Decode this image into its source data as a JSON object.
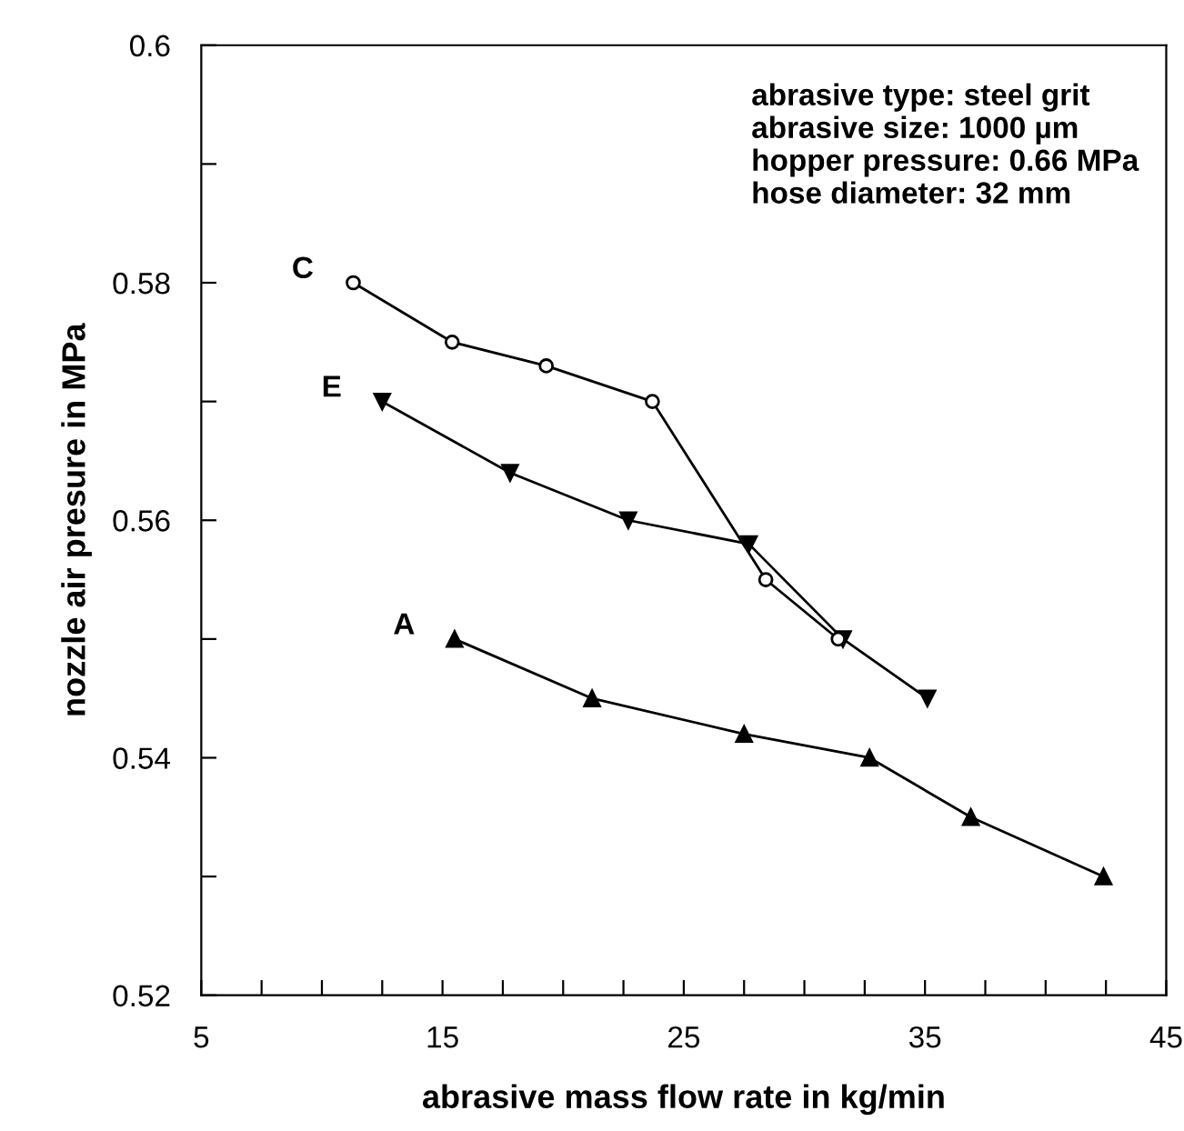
{
  "chart_data": {
    "type": "line",
    "xlabel": "abrasive mass flow rate in kg/min",
    "ylabel": "nozzle air presure in MPa",
    "xlim": [
      5,
      45
    ],
    "ylim": [
      0.52,
      0.6
    ],
    "xticks": [
      5,
      {
        "value": 7.5,
        "label": null
      },
      {
        "value": 10,
        "label": null
      },
      {
        "value": 12.5,
        "label": null
      },
      15,
      {
        "value": 17.5,
        "label": null
      },
      {
        "value": 20,
        "label": null
      },
      {
        "value": 22.5,
        "label": null
      },
      25,
      {
        "value": 27.5,
        "label": null
      },
      {
        "value": 30,
        "label": null
      },
      {
        "value": 32.5,
        "label": null
      },
      35,
      {
        "value": 37.5,
        "label": null
      },
      {
        "value": 40,
        "label": null
      },
      {
        "value": 42.5,
        "label": null
      },
      45
    ],
    "yticks": [
      0.52,
      {
        "value": 0.53,
        "label": null
      },
      0.54,
      {
        "value": 0.55,
        "label": null
      },
      0.56,
      {
        "value": 0.57,
        "label": null
      },
      0.58,
      {
        "value": 0.59,
        "label": null
      },
      0.6
    ],
    "grid": false,
    "legend": false,
    "line_style": "solid",
    "series": [
      {
        "name": "C",
        "color": "#000000",
        "marker": "circle",
        "x": [
          11.3,
          15.4,
          19.3,
          23.7,
          28.4,
          31.4
        ],
        "values": [
          0.58,
          0.575,
          0.573,
          0.57,
          0.555,
          0.55
        ]
      },
      {
        "name": "E",
        "color": "#000000",
        "marker": "triangle_down",
        "x": [
          12.5,
          17.8,
          22.7,
          27.7,
          31.6,
          35.1
        ],
        "values": [
          0.57,
          0.564,
          0.56,
          0.558,
          0.55,
          0.545
        ]
      },
      {
        "name": "A",
        "color": "#000000",
        "marker": "triangle",
        "x": [
          15.5,
          21.2,
          27.5,
          32.7,
          36.9,
          42.4
        ],
        "values": [
          0.55,
          0.545,
          0.542,
          0.54,
          0.535,
          0.53
        ]
      }
    ],
    "annotations": [
      "abrasive type: steel grit\nabrasive size: 1000 µm\nhopper pressure: 0.66 MPa\nhose diameter: 32 mm"
    ]
  }
}
